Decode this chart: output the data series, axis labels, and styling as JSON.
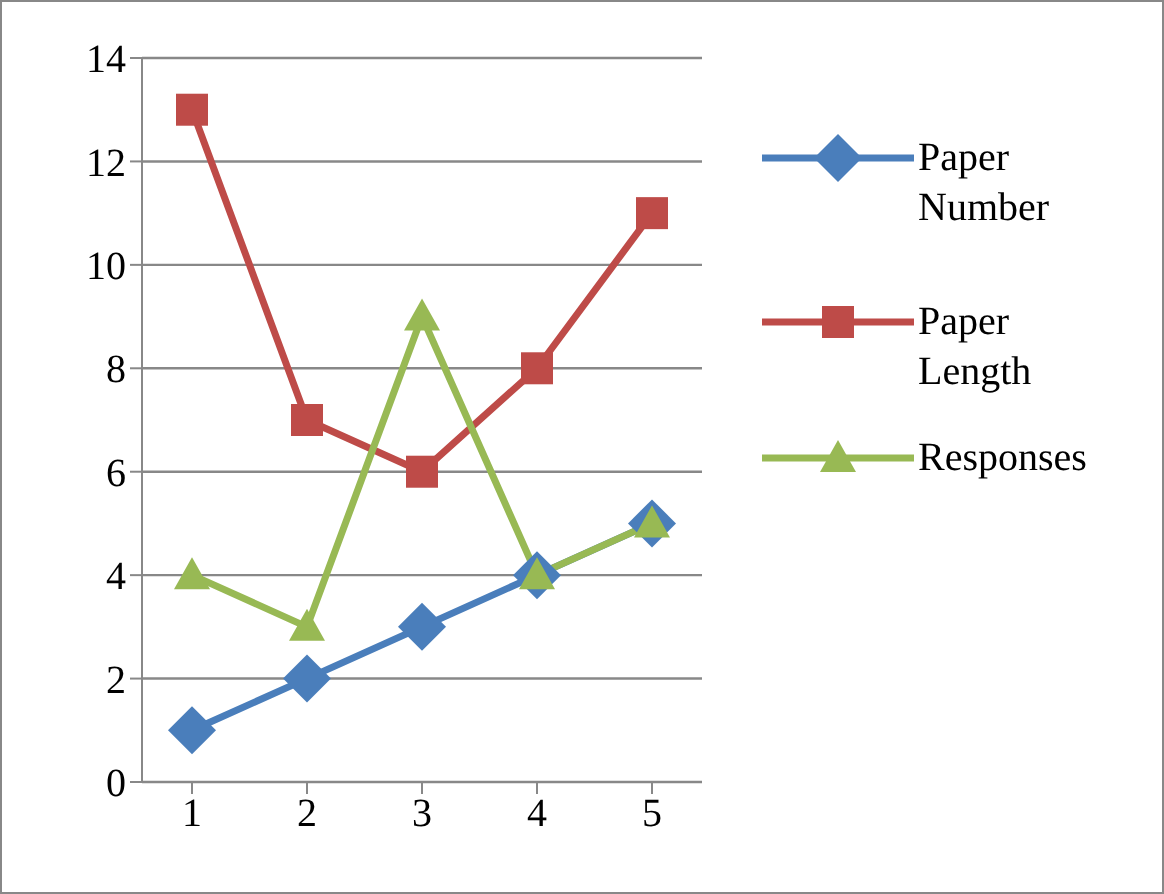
{
  "chart_data": {
    "type": "line",
    "categories": [
      "1",
      "2",
      "3",
      "4",
      "5"
    ],
    "series": [
      {
        "name": "Paper Number",
        "color": "#4a7ebb",
        "marker": "diamond",
        "values": [
          1,
          2,
          3,
          4,
          5
        ]
      },
      {
        "name": "Paper Length",
        "color": "#be4b48",
        "marker": "square",
        "values": [
          13,
          7,
          6,
          8,
          11
        ]
      },
      {
        "name": "Responses",
        "color": "#98b954",
        "marker": "triangle",
        "values": [
          4,
          3,
          9,
          4,
          5
        ]
      }
    ],
    "ylim": [
      0,
      14
    ],
    "yticks": [
      0,
      2,
      4,
      6,
      8,
      10,
      12,
      14
    ],
    "grid": "y",
    "legend": "right",
    "line_style": "solid"
  }
}
